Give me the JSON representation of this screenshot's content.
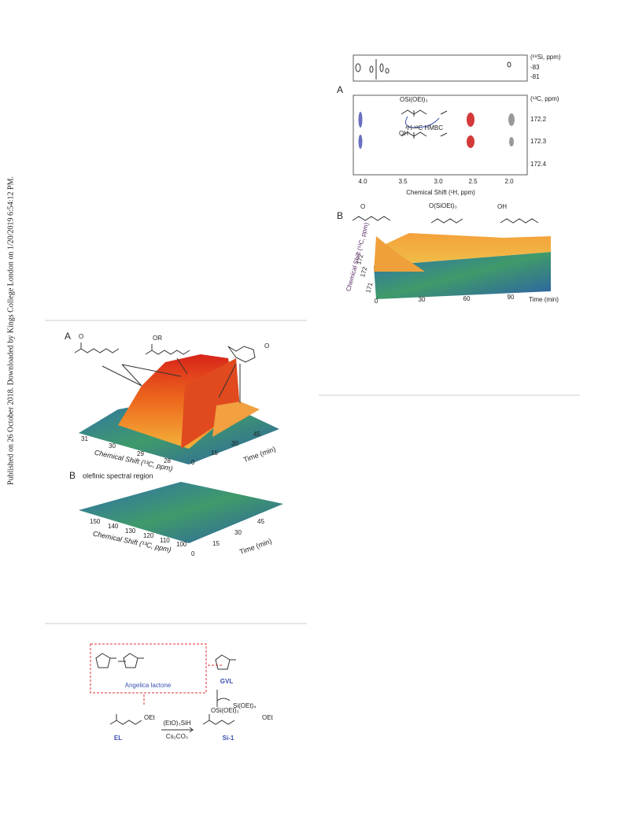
{
  "sidebar": "Published on 26 October 2018. Downloaded by Kings College London on 1/20/2019 6:54:12 PM.",
  "figure_right": {
    "si_axis": {
      "label": "(²⁹Si, ppm)",
      "ticks": [
        "-83",
        "-81"
      ]
    },
    "panel_a": {
      "letter": "A",
      "axis_label": "(¹³C, ppm)",
      "yticks": [
        "172.2",
        "172.3",
        "172.4"
      ],
      "xticks": [
        "4.0",
        "3.5",
        "3.0",
        "2.5",
        "2.0"
      ],
      "x_label": "Chemical Shift (¹H, ppm)",
      "labels": [
        "OSi(OEt)₃",
        "¹H-¹³C HMBC",
        "OH"
      ]
    },
    "panel_b": {
      "letter": "B",
      "labels": [
        "O",
        "O(SiOEt)₃",
        "OH"
      ],
      "y_label": "Chemical Shift (¹³C, ppm)",
      "yticks": [
        "171",
        "172",
        "172"
      ],
      "xticks": [
        "0",
        "30",
        "60",
        "90"
      ],
      "x_label": "Time (min)"
    }
  },
  "figure_left": {
    "panel_a": {
      "letter": "A",
      "labels": [
        "O",
        "OR",
        "O"
      ],
      "xticks": [
        "31",
        "30",
        "29",
        "28"
      ],
      "x_label": "Chemical Shift (¹³C, ppm)",
      "tticks": [
        "0",
        "15",
        "30",
        "45"
      ],
      "t_label": "Time (min)"
    },
    "panel_b": {
      "letter": "B",
      "title": "olefinic spectral region",
      "xticks": [
        "150",
        "140",
        "130",
        "120",
        "110",
        "100"
      ],
      "x_label": "Chemical Shift (¹³C, ppm)",
      "tticks": [
        "0",
        "15",
        "30",
        "45"
      ],
      "t_label": "Time (min)"
    }
  },
  "scheme": {
    "box_label": "Angelica lactone",
    "gvl": "GVL",
    "byproduct": "Si(OEt)₄",
    "si1_group": "OSi(OEt)₃",
    "si1_ester": "OEt",
    "reagent": "(EtO)₃SiH",
    "base": "Cs₂CO₃",
    "el": "EL",
    "el_ester": "OEt",
    "si1": "Si-1"
  }
}
